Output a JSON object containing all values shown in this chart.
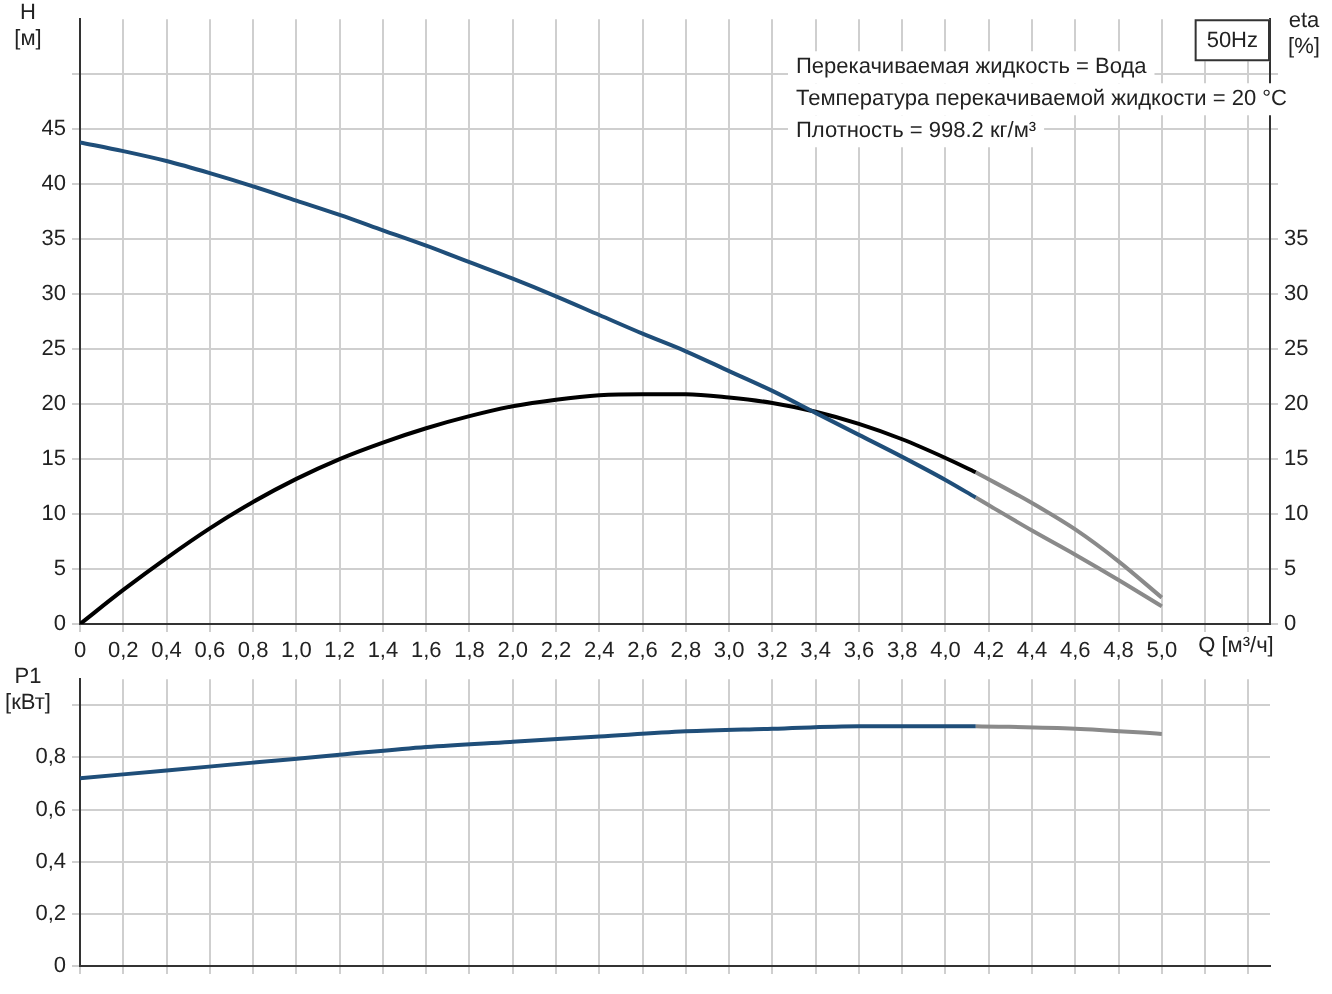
{
  "chart_data": [
    {
      "type": "line",
      "ylabel": "H [м]",
      "y2label": "eta [%]",
      "xlabel": "Q [м³/ч]",
      "grid": true,
      "marker": "none",
      "line_style": "solid",
      "legend": false,
      "annotations": [
        "50Hz",
        "Перекачиваемая жидкость = Вода",
        "Температура перекачиваемой жидкости = 20 °C",
        "Плотность = 998.2 кг/м³"
      ],
      "xlim": [
        0,
        5.5
      ],
      "xticks": [
        0,
        {
          "value": 0.2,
          "label": "0,2"
        },
        {
          "value": 0.4,
          "label": "0,4"
        },
        {
          "value": 0.6,
          "label": "0,6"
        },
        {
          "value": 0.8,
          "label": "0,8"
        },
        {
          "value": 1,
          "label": "1,0"
        },
        {
          "value": 1.2,
          "label": "1,2"
        },
        {
          "value": 1.4,
          "label": "1,4"
        },
        {
          "value": 1.6,
          "label": "1,6"
        },
        {
          "value": 1.8,
          "label": "1,8"
        },
        {
          "value": 2,
          "label": "2,0"
        },
        {
          "value": 2.2,
          "label": "2,2"
        },
        {
          "value": 2.4,
          "label": "2,4"
        },
        {
          "value": 2.6,
          "label": "2,6"
        },
        {
          "value": 2.8,
          "label": "2,8"
        },
        {
          "value": 3,
          "label": "3,0"
        },
        {
          "value": 3.2,
          "label": "3,2"
        },
        {
          "value": 3.4,
          "label": "3,4"
        },
        {
          "value": 3.6,
          "label": "3,6"
        },
        {
          "value": 3.8,
          "label": "3,8"
        },
        {
          "value": 4,
          "label": "4,0"
        },
        {
          "value": 4.2,
          "label": "4,2"
        },
        {
          "value": 4.4,
          "label": "4,4"
        },
        {
          "value": 4.6,
          "label": "4,6"
        },
        {
          "value": 4.8,
          "label": "4,8"
        },
        {
          "value": 5,
          "label": "5,0"
        },
        {
          "value": 5.2,
          "label": null
        },
        {
          "value": 5.4,
          "label": null
        }
      ],
      "ylim": [
        0,
        55
      ],
      "yticks": [
        0,
        5,
        10,
        15,
        20,
        25,
        30,
        35,
        40,
        45,
        {
          "value": 50,
          "label": null
        }
      ],
      "y2lim": [
        0,
        55
      ],
      "y2ticks": [
        0,
        5,
        10,
        15,
        20,
        25,
        30,
        35,
        {
          "value": 40,
          "label": null
        },
        {
          "value": 45,
          "label": null
        },
        {
          "value": 50,
          "label": null
        }
      ],
      "series": [
        {
          "color": "#1f4e79",
          "x": [
            0,
            0.2,
            0.4,
            0.6,
            0.8,
            1,
            1.2,
            1.4,
            1.6,
            1.8,
            2,
            2.2,
            2.4,
            2.6,
            2.8,
            3,
            3.2,
            3.4,
            3.6,
            3.8,
            4,
            4.14
          ],
          "values": [
            43.8,
            43,
            42.1,
            41,
            39.8,
            38.5,
            37.2,
            35.8,
            34.4,
            32.9,
            31.4,
            29.8,
            28.1,
            26.4,
            24.8,
            23,
            21.2,
            19.2,
            17.2,
            15.2,
            13.1,
            11.5
          ]
        },
        {
          "color": "#8a8a8a",
          "x": [
            4.14,
            4.4,
            4.6,
            4.8,
            5
          ],
          "values": [
            11.5,
            8.5,
            6.3,
            4,
            1.6
          ]
        },
        {
          "color": "#000000",
          "axis": "y2",
          "x": [
            0,
            0.2,
            0.4,
            0.6,
            0.8,
            1,
            1.2,
            1.4,
            1.6,
            1.8,
            2,
            2.2,
            2.4,
            2.6,
            2.8,
            3,
            3.2,
            3.4,
            3.6,
            3.8,
            4,
            4.14
          ],
          "values": [
            0,
            3.1,
            6,
            8.7,
            11.1,
            13.2,
            15,
            16.5,
            17.8,
            18.9,
            19.8,
            20.4,
            20.8,
            20.9,
            20.9,
            20.6,
            20.1,
            19.3,
            18.2,
            16.8,
            15.1,
            13.8
          ]
        },
        {
          "color": "#8a8a8a",
          "axis": "y2",
          "x": [
            4.14,
            4.4,
            4.6,
            4.8,
            5
          ],
          "values": [
            13.8,
            11,
            8.6,
            5.7,
            2.4
          ]
        }
      ]
    },
    {
      "type": "line",
      "ylabel": "P1 [кВт]",
      "grid": true,
      "marker": "none",
      "line_style": "solid",
      "legend": false,
      "tick_labels": "y",
      "xlim": [
        0,
        5.5
      ],
      "xticks": [
        0,
        0.2,
        0.4,
        0.6,
        0.8,
        1,
        1.2,
        1.4,
        1.6,
        1.8,
        2,
        2.2,
        2.4,
        2.6,
        2.8,
        3,
        3.2,
        3.4,
        3.6,
        3.8,
        4,
        4.2,
        4.4,
        4.6,
        4.8,
        5,
        5.2,
        5.4
      ],
      "ylim": [
        0,
        1.1
      ],
      "yticks": [
        0,
        {
          "value": 0.2,
          "label": "0,2"
        },
        {
          "value": 0.4,
          "label": "0,4"
        },
        {
          "value": 0.6,
          "label": "0,6"
        },
        {
          "value": 0.8,
          "label": "0,8"
        },
        {
          "value": 1,
          "label": null
        }
      ],
      "series": [
        {
          "color": "#1f4e79",
          "x": [
            0,
            0.4,
            0.8,
            1.2,
            1.6,
            2,
            2.4,
            2.8,
            3.2,
            3.6,
            4,
            4.14
          ],
          "values": [
            0.72,
            0.75,
            0.78,
            0.81,
            0.84,
            0.86,
            0.88,
            0.9,
            0.91,
            0.92,
            0.92,
            0.92
          ]
        },
        {
          "color": "#8a8a8a",
          "x": [
            4.14,
            4.6,
            5
          ],
          "values": [
            0.92,
            0.91,
            0.89
          ]
        }
      ]
    }
  ]
}
